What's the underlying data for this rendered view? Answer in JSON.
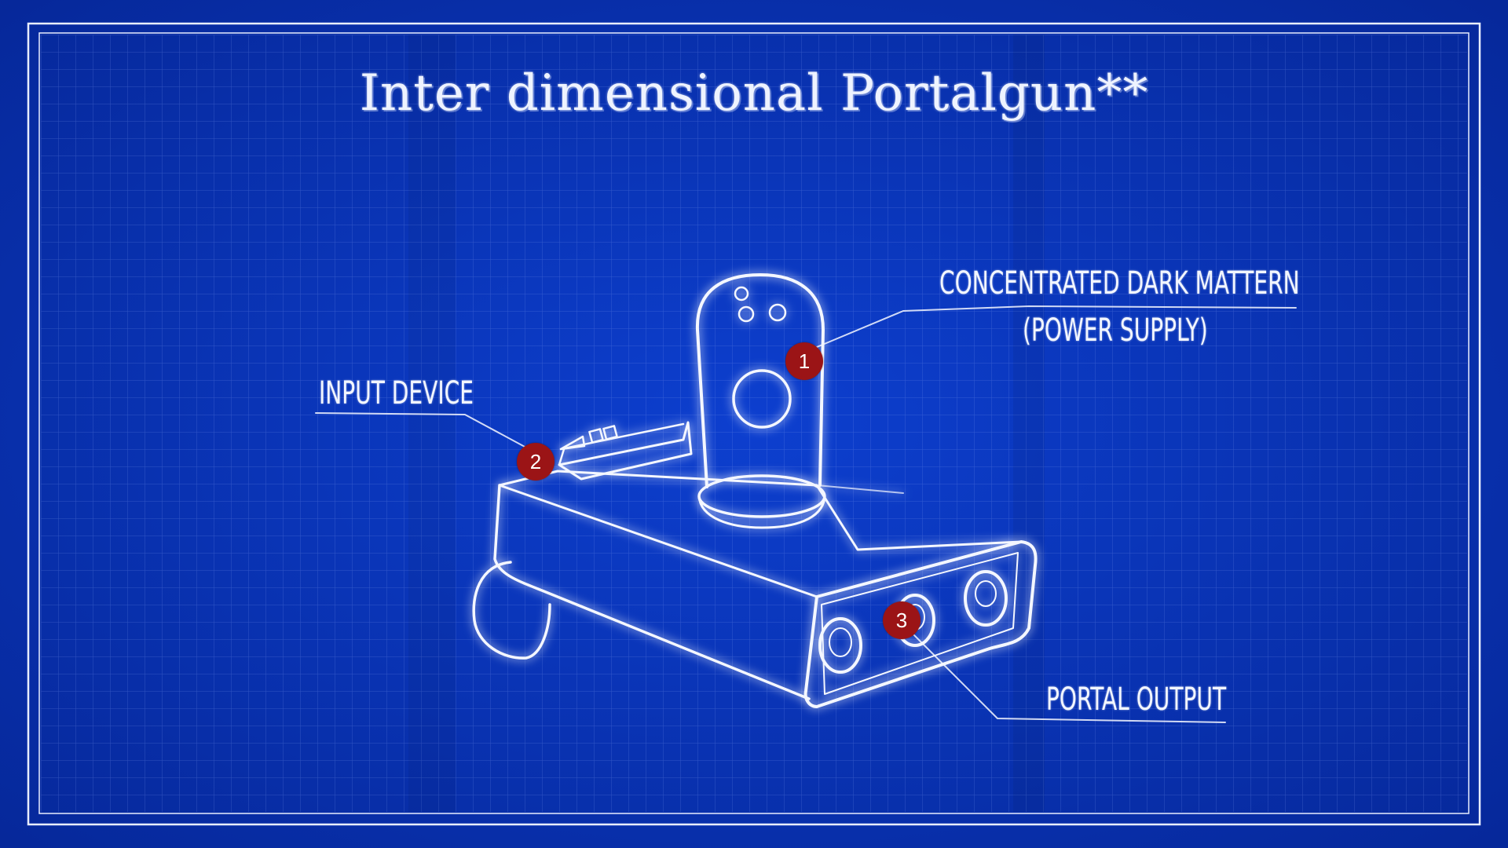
{
  "title": "Inter dimensional Portalgun**",
  "callouts": [
    {
      "number": "1",
      "label_line1": "Concentrated dark mattern",
      "label_line2": "(power supply)"
    },
    {
      "number": "2",
      "label_line1": "Input device"
    },
    {
      "number": "3",
      "label_line1": "Portal output"
    }
  ],
  "colors": {
    "background": "#0a34b8",
    "grid": "#6f8fe8",
    "sketch": "#f4f7ff",
    "marker": "#9b1416"
  }
}
